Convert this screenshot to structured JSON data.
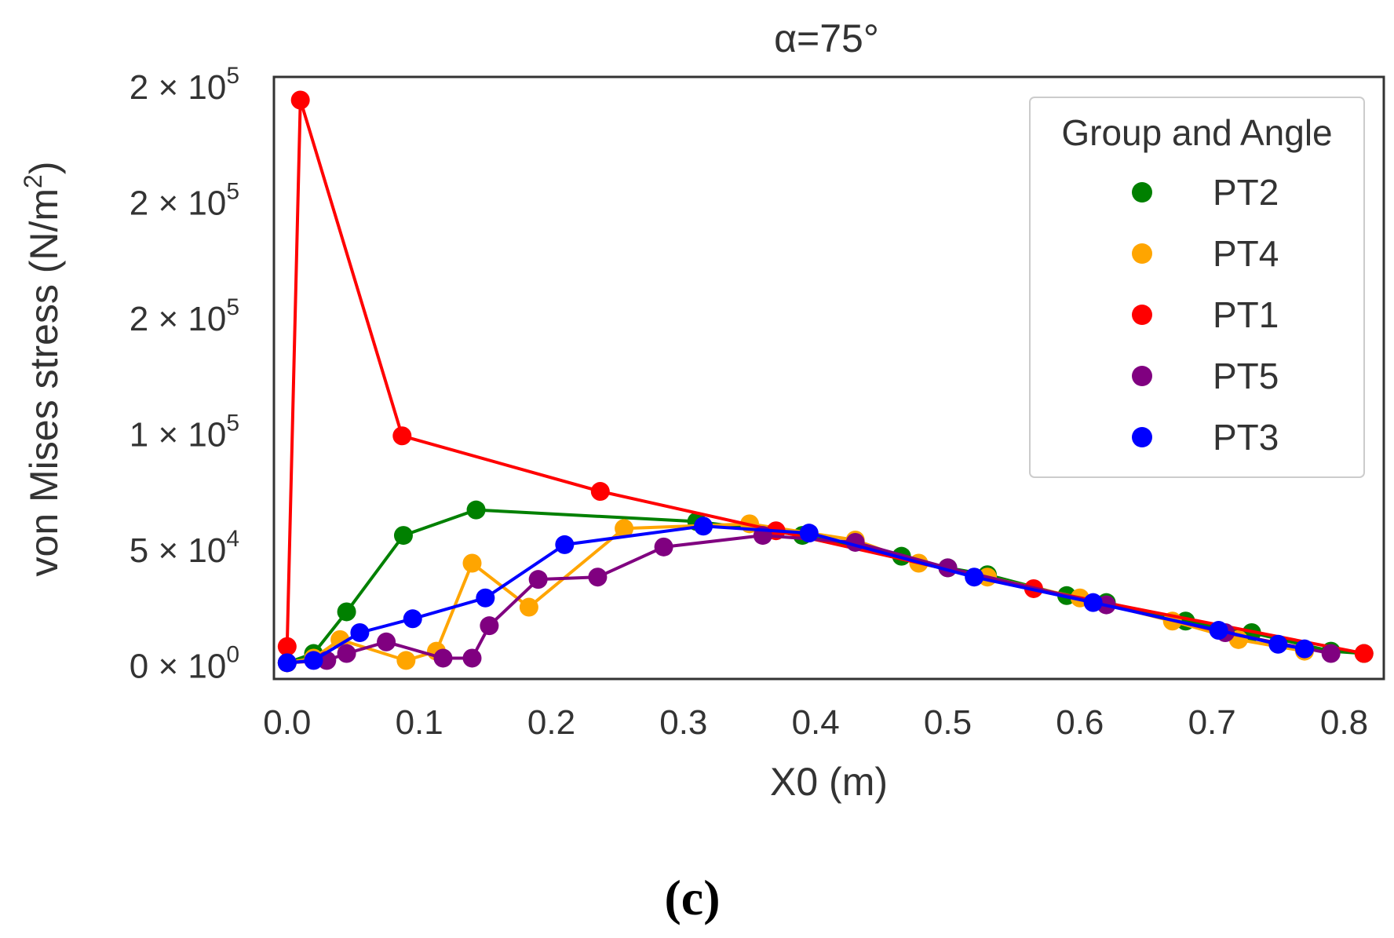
{
  "chart_data": {
    "type": "line",
    "title": "α=75°",
    "xlabel": "X0 (m)",
    "ylabel": "von Mises stress (N/m",
    "ylabel_sup": "2",
    "ylabel_close": ")",
    "xlim": [
      -0.01,
      0.83
    ],
    "ylim": [
      -6000,
      254000
    ],
    "xticks": [
      {
        "value": 0.0,
        "label": "0.0"
      },
      {
        "value": 0.1,
        "label": "0.1"
      },
      {
        "value": 0.2,
        "label": "0.2"
      },
      {
        "value": 0.3,
        "label": "0.3"
      },
      {
        "value": 0.4,
        "label": "0.4"
      },
      {
        "value": 0.5,
        "label": "0.5"
      },
      {
        "value": 0.6,
        "label": "0.6"
      },
      {
        "value": 0.7,
        "label": "0.7"
      },
      {
        "value": 0.8,
        "label": "0.8"
      }
    ],
    "yticks": [
      {
        "value": 0,
        "mant": "0",
        "exp": "0"
      },
      {
        "value": 50000,
        "mant": "5",
        "exp": "4"
      },
      {
        "value": 100000,
        "mant": "1",
        "exp": "5"
      },
      {
        "value": 150000,
        "mant": "2",
        "exp": "5"
      },
      {
        "value": 200000,
        "mant": "2",
        "exp": "5"
      },
      {
        "value": 250000,
        "mant": "2",
        "exp": "5"
      }
    ],
    "legend_title": "Group and Angle",
    "legend_position": "top-right",
    "series": [
      {
        "name": "PT2",
        "color": "#008000",
        "x": [
          0.0,
          0.02,
          0.045,
          0.088,
          0.143,
          0.31,
          0.39,
          0.465,
          0.5,
          0.53,
          0.59,
          0.62,
          0.68,
          0.73,
          0.79,
          0.815
        ],
        "y": [
          1000,
          5000,
          23000,
          56000,
          67000,
          62000,
          56000,
          47000,
          42000,
          39000,
          30000,
          27000,
          19000,
          14000,
          6000,
          5000
        ]
      },
      {
        "name": "PT4",
        "color": "#FFA500",
        "x": [
          0.0,
          0.02,
          0.04,
          0.09,
          0.113,
          0.14,
          0.183,
          0.255,
          0.35,
          0.43,
          0.478,
          0.53,
          0.6,
          0.67,
          0.72,
          0.77
        ],
        "y": [
          1000,
          3000,
          11000,
          2000,
          6000,
          44000,
          25000,
          59000,
          61000,
          54000,
          44000,
          38000,
          29000,
          19000,
          11000,
          6000
        ]
      },
      {
        "name": "PT1",
        "color": "#FF0000",
        "x": [
          0.0,
          0.01,
          0.087,
          0.237,
          0.37,
          0.565,
          0.815
        ],
        "y": [
          8000,
          244000,
          99000,
          75000,
          58000,
          33000,
          5000
        ]
      },
      {
        "name": "PT5",
        "color": "#800080",
        "x": [
          0.0,
          0.03,
          0.045,
          0.075,
          0.118,
          0.14,
          0.153,
          0.19,
          0.235,
          0.285,
          0.36,
          0.43,
          0.5,
          0.62,
          0.71,
          0.79
        ],
        "y": [
          1000,
          2000,
          5000,
          10000,
          3000,
          3000,
          17000,
          37000,
          38000,
          51000,
          56000,
          53000,
          42000,
          26000,
          14000,
          5000
        ]
      },
      {
        "name": "PT3",
        "color": "#0000FF",
        "x": [
          0.0,
          0.02,
          0.055,
          0.095,
          0.15,
          0.21,
          0.315,
          0.395,
          0.52,
          0.61,
          0.705,
          0.75,
          0.77
        ],
        "y": [
          1000,
          2000,
          14000,
          20000,
          29000,
          52000,
          60000,
          57000,
          38000,
          27000,
          15000,
          9000,
          7000
        ]
      }
    ]
  },
  "caption": "(c)"
}
